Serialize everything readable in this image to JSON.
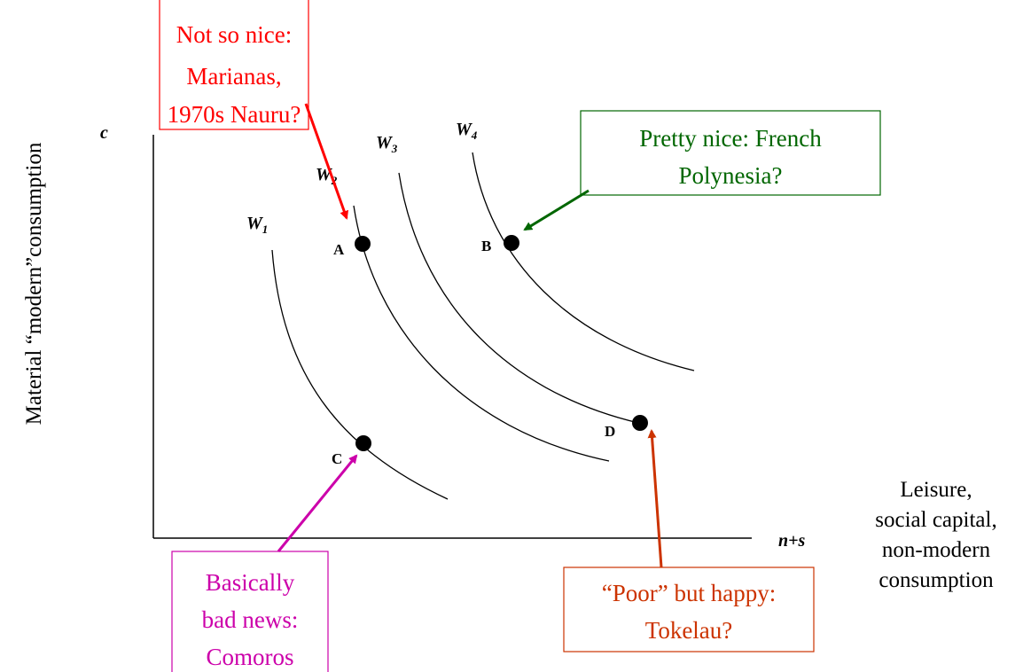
{
  "axes": {
    "y_symbol": "c",
    "x_symbol": "n+s",
    "y_label": "Material “modern”consumption",
    "x_label": [
      "Leisure,",
      "social capital,",
      "non-modern",
      "consumption"
    ]
  },
  "curves": [
    {
      "label": "W",
      "subscript": "1"
    },
    {
      "label": "W",
      "subscript": "2"
    },
    {
      "label": "W",
      "subscript": "3"
    },
    {
      "label": "W",
      "subscript": "4"
    }
  ],
  "points": [
    "A",
    "B",
    "C",
    "D"
  ],
  "callouts": [
    {
      "lines": [
        "Not so nice:",
        "Marianas,",
        "1970s Nauru?"
      ]
    },
    {
      "lines": [
        "Pretty nice: French",
        "Polynesia?"
      ]
    },
    {
      "lines": [
        "Basically",
        "bad news:",
        "Comoros"
      ]
    },
    {
      "lines": [
        "“Poor” but happy:",
        "Tokelau?"
      ]
    }
  ]
}
